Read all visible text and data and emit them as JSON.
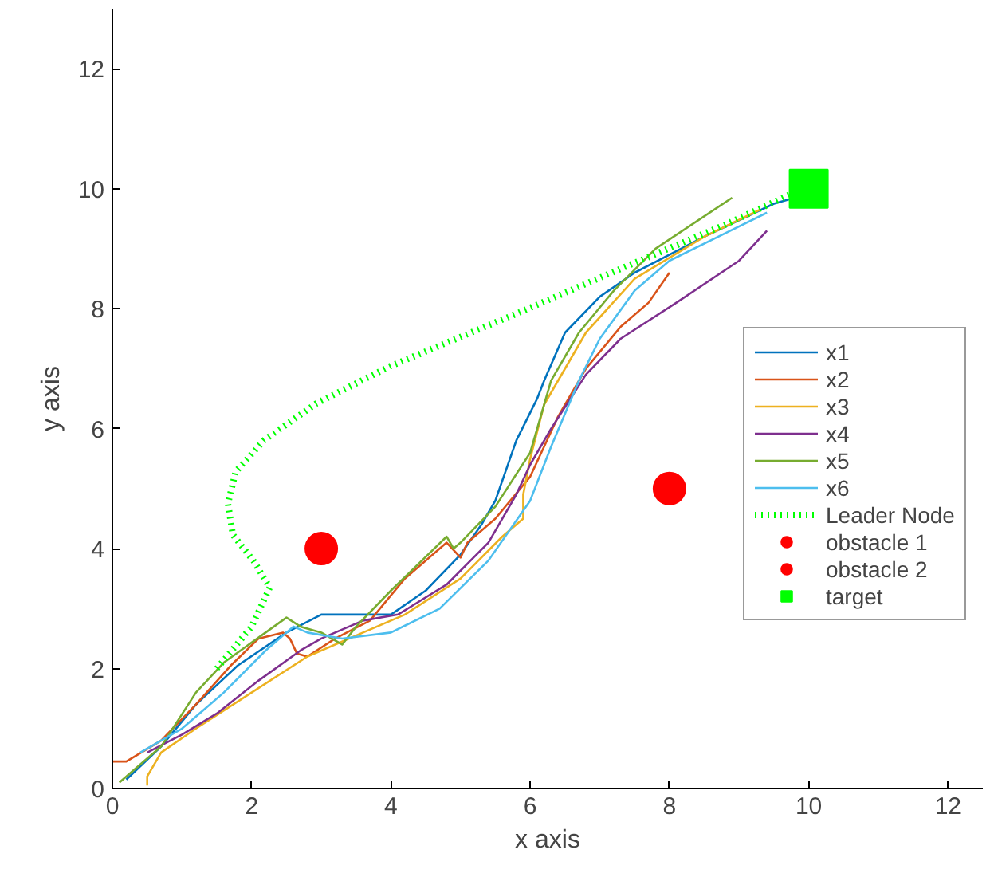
{
  "chart_data": {
    "type": "line",
    "xlabel": "x axis",
    "ylabel": "y axis",
    "xlim": [
      0,
      12.5
    ],
    "ylim": [
      0,
      13
    ],
    "xticks": [
      0,
      2,
      4,
      6,
      8,
      10,
      12
    ],
    "yticks": [
      0,
      2,
      4,
      6,
      8,
      10,
      12
    ],
    "grid": false,
    "legend": "right",
    "line_style": "solid",
    "series": [
      {
        "name": "x1",
        "color": "#0072bd",
        "x": [
          0.2,
          0.7,
          1.2,
          1.8,
          2.5,
          3.0,
          3.5,
          4.0,
          4.5,
          5.0,
          5.3,
          5.5,
          5.8,
          6.1,
          6.2,
          6.5,
          7.0,
          7.5,
          8.5,
          9.5,
          9.8
        ],
        "values": [
          0.15,
          0.7,
          1.4,
          2.05,
          2.6,
          2.9,
          2.9,
          2.9,
          3.3,
          3.9,
          4.4,
          4.8,
          5.8,
          6.5,
          6.8,
          7.6,
          8.2,
          8.6,
          9.2,
          9.75,
          9.85
        ]
      },
      {
        "name": "x2",
        "color": "#d95319",
        "x": [
          0,
          0.2,
          0.7,
          1.2,
          1.7,
          2.1,
          2.45,
          2.55,
          2.65,
          2.8,
          3.2,
          3.7,
          4.2,
          4.8,
          5.0,
          5.1,
          5.5,
          6.0,
          6.4,
          6.8,
          7.3,
          7.7,
          8.0
        ],
        "values": [
          0.45,
          0.45,
          0.8,
          1.4,
          2.05,
          2.5,
          2.6,
          2.5,
          2.25,
          2.2,
          2.5,
          2.8,
          3.5,
          4.1,
          3.85,
          4.1,
          4.5,
          5.2,
          6.2,
          7.0,
          7.7,
          8.1,
          8.6
        ]
      },
      {
        "name": "x3",
        "color": "#edb120",
        "x": [
          0.5,
          0.5,
          0.7,
          1.2,
          2.0,
          2.8,
          3.5,
          4.2,
          5.0,
          5.6,
          5.9,
          5.9,
          6.0,
          6.2,
          6.8,
          7.5,
          8.5,
          9.3
        ],
        "values": [
          0.05,
          0.2,
          0.6,
          1.0,
          1.6,
          2.2,
          2.55,
          2.9,
          3.5,
          4.2,
          4.5,
          4.9,
          5.5,
          6.4,
          7.6,
          8.5,
          9.2,
          9.65
        ]
      },
      {
        "name": "x4",
        "color": "#7e2f8e",
        "x": [
          0.5,
          1.0,
          1.5,
          2.1,
          2.7,
          3.0,
          3.6,
          4.1,
          4.8,
          5.4,
          5.8,
          6.0,
          6.3,
          6.8,
          7.3,
          8.1,
          9.0,
          9.4
        ],
        "values": [
          0.6,
          0.9,
          1.25,
          1.8,
          2.3,
          2.5,
          2.8,
          2.9,
          3.4,
          4.1,
          4.9,
          5.4,
          6.0,
          6.9,
          7.5,
          8.1,
          8.8,
          9.3
        ]
      },
      {
        "name": "x5",
        "color": "#77ac30",
        "x": [
          0.1,
          0.7,
          1.2,
          1.6,
          2.2,
          2.5,
          2.7,
          3.0,
          3.3,
          3.5,
          4.0,
          4.8,
          4.9,
          5.0,
          5.5,
          6.0,
          6.3,
          6.7,
          7.2,
          7.8,
          8.9
        ],
        "values": [
          0.1,
          0.7,
          1.6,
          2.1,
          2.6,
          2.85,
          2.7,
          2.6,
          2.4,
          2.7,
          3.3,
          4.2,
          4.0,
          4.1,
          4.7,
          5.6,
          6.8,
          7.6,
          8.3,
          9.0,
          9.85
        ]
      },
      {
        "name": "x6",
        "color": "#4dbeee",
        "x": [
          0.4,
          1.0,
          1.6,
          2.2,
          2.6,
          2.8,
          3.3,
          4.0,
          4.7,
          5.4,
          6.0,
          6.3,
          6.7,
          7.0,
          7.5,
          8.0,
          8.7,
          9.4
        ],
        "values": [
          0.6,
          1.0,
          1.6,
          2.3,
          2.7,
          2.6,
          2.5,
          2.6,
          3.0,
          3.8,
          4.8,
          5.7,
          6.8,
          7.5,
          8.3,
          8.8,
          9.2,
          9.6
        ]
      },
      {
        "name": "Leader Node",
        "color": "#00ff00",
        "line_style": "dotted",
        "x": [
          1.5,
          2.0,
          2.26,
          2.03,
          1.73,
          1.66,
          1.77,
          2.18,
          2.93,
          3.99,
          5.79,
          7.37,
          8.8,
          9.78
        ],
        "values": [
          2.0,
          2.7,
          3.35,
          3.79,
          4.23,
          4.75,
          5.28,
          5.81,
          6.42,
          7.04,
          7.91,
          8.7,
          9.4,
          9.93
        ]
      },
      {
        "name": "obstacle 1",
        "type": "scatter",
        "marker": "circle",
        "color": "#ff0000",
        "x": [
          3
        ],
        "values": [
          4
        ]
      },
      {
        "name": "obstacle 2",
        "type": "scatter",
        "marker": "circle",
        "color": "#ff0000",
        "x": [
          8
        ],
        "values": [
          5
        ]
      },
      {
        "name": "target",
        "type": "scatter",
        "marker": "square",
        "color": "#00ff00",
        "x": [
          10
        ],
        "values": [
          10
        ]
      }
    ]
  }
}
